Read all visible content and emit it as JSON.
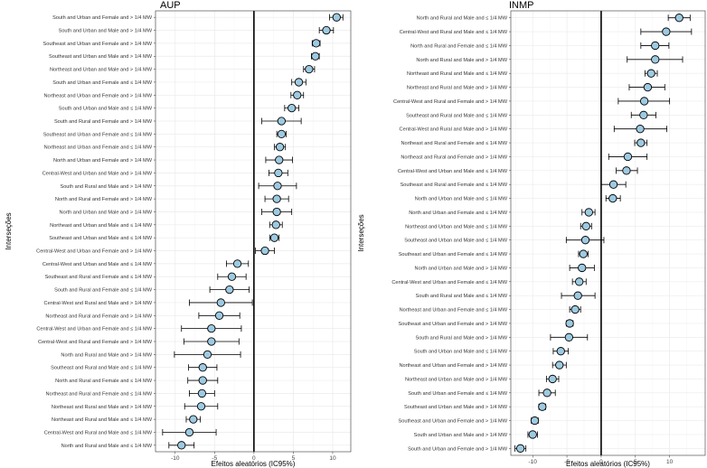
{
  "chart_data": [
    {
      "type": "forest",
      "title": "AUP",
      "xlabel": "Efeitos aleatórios (IC95%)",
      "ylabel": "Interseções",
      "xlim": [
        -12.5,
        12.3
      ],
      "xticks": [
        -10,
        -5,
        0,
        5,
        10
      ],
      "xtick_labels": [
        "-10",
        "-5",
        "0",
        "5",
        "10"
      ],
      "categories": [
        "South and Urban and Female and > 1/4 MW",
        "South and Urban and Male and > 1/4 MW",
        "Southeast and Urban and Female and > 1/4 MW",
        "Southeast and Urban and Male and > 1/4 MW",
        "Northeast and Urban and Male and > 1/4 MW",
        "South and Urban and Female and ≤ 1/4 MW",
        "Northeast and Urban and Female and > 1/4 MW",
        "South and Urban and Male and ≤ 1/4 MW",
        "South and Rural and Female and > 1/4 MW",
        "Southeast and Urban and Female and ≤ 1/4 MW",
        "Northeast and Urban and Female and ≤ 1/4 MW",
        "North and Urban and Female and > 1/4 MW",
        "Central-West and Urban and Male and > 1/4 MW",
        "South and Rural and Male and > 1/4 MW",
        "North and Rural and Female and > 1/4 MW",
        "North and Urban and Male and > 1/4 MW",
        "Northeast and Urban and Male and ≤ 1/4 MW",
        "Southeast and Urban and Male and ≤ 1/4 MW",
        "Central-West and Urban and Female and > 1/4 MW",
        "Central-West and Urban and Male and ≤ 1/4 MW",
        "Southeast and Rural and Female and ≤ 1/4 MW",
        "South and Rural and Female and ≤ 1/4 MW",
        "Central-West and Rural and Male and > 1/4 MW",
        "Northeast and Rural and Female and > 1/4 MW",
        "Central-West and Urban and Female and ≤ 1/4 MW",
        "Central-West and Rural and Female and > 1/4 MW",
        "North and Rural and Male and > 1/4 MW",
        "Southeast and Rural and Male and ≤ 1/4 MW",
        "North and Rural and Female and ≤ 1/4 MW",
        "Northeast and Rural and Female and ≤ 1/4 MW",
        "Northeast and Rural and Male and > 1/4 MW",
        "Northeast and Rural and Male and ≤ 1/4 MW",
        "Central-West and Rural and Male and ≤ 1/4 MW",
        "North and Rural and Male and ≤ 1/4 MW"
      ],
      "estimates": [
        10.5,
        9.2,
        7.9,
        7.8,
        7.0,
        5.7,
        5.5,
        4.8,
        3.5,
        3.5,
        3.3,
        3.2,
        3.1,
        3.0,
        2.9,
        2.9,
        2.8,
        2.6,
        1.4,
        -2.1,
        -2.8,
        -3.1,
        -4.2,
        -4.4,
        -5.4,
        -5.4,
        -5.9,
        -6.5,
        -6.5,
        -6.6,
        -6.7,
        -7.7,
        -8.2,
        -9.2
      ],
      "lower": [
        9.6,
        8.3,
        7.4,
        7.3,
        6.3,
        4.8,
        4.7,
        3.9,
        1.0,
        2.9,
        2.6,
        1.5,
        1.9,
        0.6,
        1.4,
        1.0,
        2.0,
        2.0,
        0.2,
        -3.5,
        -4.6,
        -5.6,
        -8.2,
        -7.0,
        -9.2,
        -8.9,
        -10.1,
        -8.3,
        -8.4,
        -8.2,
        -8.8,
        -8.6,
        -11.6,
        -10.8
      ],
      "upper": [
        11.3,
        10.1,
        8.4,
        8.3,
        7.7,
        6.6,
        6.3,
        5.7,
        6.0,
        4.1,
        4.0,
        4.9,
        4.3,
        5.4,
        4.4,
        4.8,
        3.6,
        3.2,
        2.6,
        -0.7,
        -1.0,
        -0.6,
        -0.2,
        -1.8,
        -1.6,
        -1.9,
        -1.7,
        -4.7,
        -4.6,
        -5.0,
        -4.6,
        -6.8,
        -4.8,
        -7.6
      ]
    },
    {
      "type": "forest",
      "title": "INMP",
      "xlabel": "Efeitos aleatórios (IC95%)",
      "ylabel": "Interseções",
      "xlim": [
        -13.2,
        15.2
      ],
      "xticks": [
        -10,
        -5,
        0,
        5,
        10
      ],
      "xtick_labels": [
        "-10",
        "-5",
        "0",
        "5",
        "10"
      ],
      "categories": [
        "North and Rural and Male and ≤ 1/4 MW",
        "Central-West and Rural and Male and ≤ 1/4 MW",
        "North and Rural and Female and ≤ 1/4 MW",
        "North and Rural and Male and > 1/4 MW",
        "Northeast and Rural and Male and ≤ 1/4 MW",
        "Northeast and Rural and Male and > 1/4 MW",
        "Central-West and Rural and Female and > 1/4 MW",
        "Southeast and Rural and Male and ≤ 1/4 MW",
        "Central-West and Rural and Male and > 1/4 MW",
        "Northeast and Rural and Female and ≤ 1/4 MW",
        "Northeast and Rural and Female and > 1/4 MW",
        "Central-West and Urban and Male and ≤ 1/4 MW",
        "Southeast and Rural and Female and ≤ 1/4 MW",
        "North and Urban and Male and ≤ 1/4 MW",
        "North and Urban and Female and ≤ 1/4 MW",
        "Northeast and Urban and Male and ≤ 1/4 MW",
        "Southeast and Urban and Male and ≤ 1/4 MW",
        "Southeast and Urban and Female and ≤ 1/4 MW",
        "North and Urban and Male and > 1/4 MW",
        "Central-West and Urban and Female and ≤ 1/4 MW",
        "South and Rural and Male and ≤ 1/4 MW",
        "Northeast and Urban and Female and ≤ 1/4 MW",
        "Southeast and Urban and Female and > 1/4 MW",
        "South and Rural and Male and > 1/4 MW",
        "South and Urban and Male and ≤ 1/4 MW",
        "Northeast and Urban and Female and > 1/4 MW",
        "Northeast and Urban and Male and > 1/4 MW",
        "South and Urban and Female and ≤ 1/4 MW",
        "Southeast and Urban and Male and > 1/4 MW",
        "Southeast and Urban and Female and > 1/4 MW",
        "South and Urban and Male and > 1/4 MW",
        "South and Urban and Female and > 1/4 MW"
      ],
      "estimates": [
        11.4,
        9.5,
        7.9,
        7.9,
        7.3,
        6.8,
        6.3,
        6.2,
        5.7,
        5.8,
        3.9,
        3.7,
        1.8,
        1.7,
        -1.8,
        -2.2,
        -2.3,
        -2.6,
        -2.8,
        -3.2,
        -3.4,
        -3.8,
        -4.6,
        -4.7,
        -5.9,
        -6.1,
        -7.1,
        -7.9,
        -8.6,
        -9.7,
        -10.0,
        -11.8
      ],
      "lower": [
        9.8,
        5.8,
        5.8,
        3.8,
        6.4,
        4.1,
        2.5,
        4.4,
        1.9,
        4.9,
        1.1,
        2.2,
        0.0,
        0.7,
        -2.8,
        -3.0,
        -5.1,
        -3.3,
        -4.6,
        -4.2,
        -5.8,
        -4.6,
        -5.1,
        -7.4,
        -7.0,
        -7.1,
        -8.0,
        -9.1,
        -9.1,
        -10.2,
        -10.7,
        -12.6
      ],
      "upper": [
        13.0,
        13.2,
        9.9,
        11.9,
        8.2,
        9.3,
        10.0,
        8.0,
        9.6,
        6.7,
        6.7,
        5.3,
        3.6,
        2.8,
        -0.9,
        -1.4,
        0.4,
        -1.9,
        -1.0,
        -2.2,
        -0.9,
        -3.0,
        -4.1,
        -2.0,
        -4.8,
        -5.1,
        -6.2,
        -6.7,
        -8.1,
        -9.2,
        -9.3,
        -11.0
      ]
    }
  ]
}
